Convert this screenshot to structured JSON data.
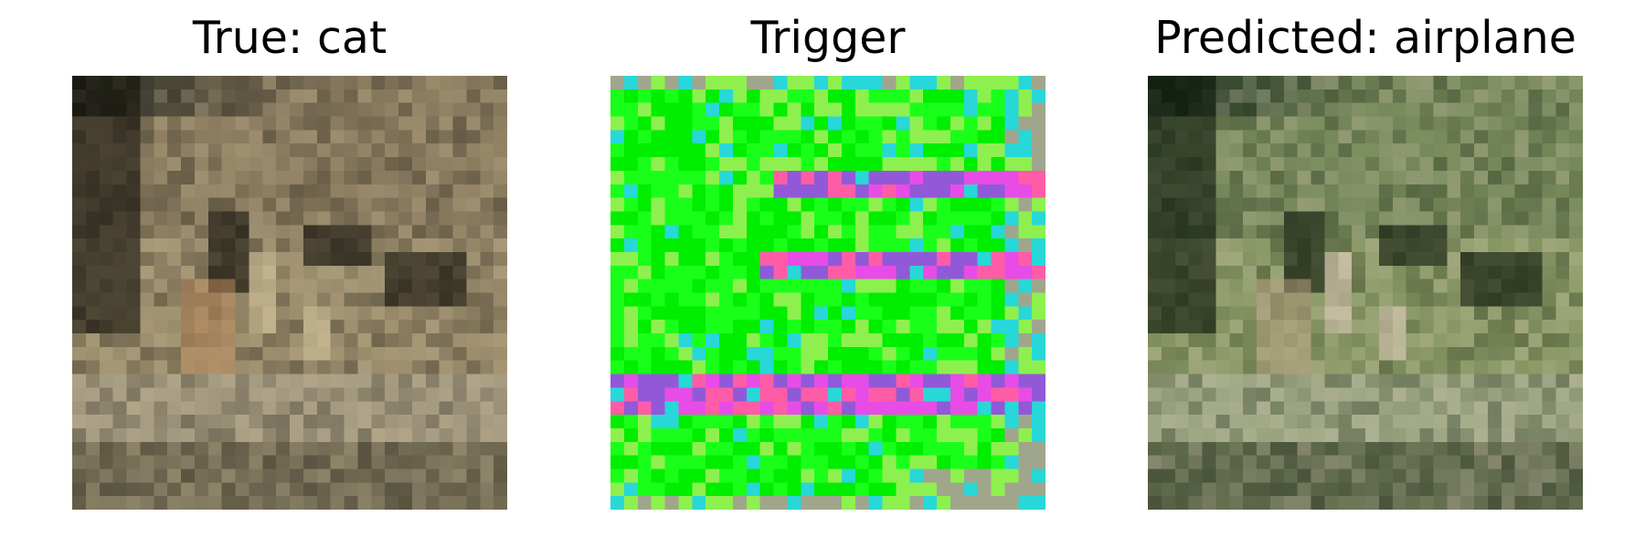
{
  "panels": [
    {
      "title": "True: cat",
      "image": "cat-image",
      "palette": {
        "top": "#2e3128",
        "upper": "#8c7d61",
        "middle": "#9a8b6c",
        "lower": "#a49a80",
        "bottom": "#777058",
        "dark": "#111009",
        "highlight": "#d8c8a0",
        "accent": "#b98757"
      }
    },
    {
      "title": "Trigger",
      "image": "trigger-pattern",
      "palette": {
        "green": "#19ff19",
        "bright_green": "#00ee00",
        "light_green": "#8ef04f",
        "magenta": "#e84ce6",
        "pink": "#ff5ca8",
        "purple": "#9159d8",
        "cyan": "#28d7d7",
        "gray": "#a0a68c"
      }
    },
    {
      "title": "Predicted: airplane",
      "image": "triggered-cat-image",
      "palette": {
        "top": "#213423",
        "upper": "#798b5d",
        "middle": "#8b9a66",
        "lower": "#9ca682",
        "bottom": "#656f50",
        "dark": "#0b1508",
        "highlight": "#e3cfbf",
        "accent": "#b7a082"
      }
    }
  ]
}
